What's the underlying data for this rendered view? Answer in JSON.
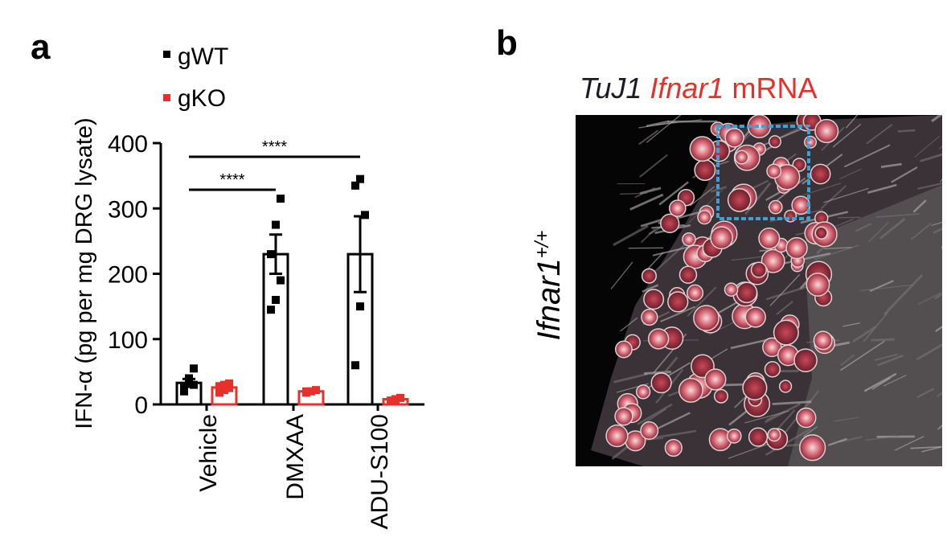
{
  "panels": {
    "a": {
      "label": "a"
    },
    "b": {
      "label": "b",
      "title_part1": "TuJ1",
      "title_part2": "Ifnar1",
      "title_part3": "mRNA",
      "side_label": "Ifnar1",
      "side_label_sup": "+/+"
    }
  },
  "colors": {
    "gWT": "#000000",
    "gKO": "#e8302a",
    "tuj1_text": "#1a1a2a",
    "mrna_text": "#e8302a",
    "roi_box": "#3fa0d8",
    "micrograph_bg": "#050505"
  },
  "chart_data": {
    "type": "bar",
    "ylabel": "IFN-α (pg per mg DRG lysate)",
    "ylim": [
      0,
      400
    ],
    "yticks": [
      "0",
      "100",
      "200",
      "300",
      "400"
    ],
    "categories": [
      "Vehicle",
      "DMXAA",
      "ADU-S100"
    ],
    "series": [
      {
        "name": "gWT",
        "values": [
          33,
          230,
          230
        ],
        "sem": [
          6,
          30,
          58
        ],
        "points": [
          [
            28,
            35,
            55,
            20,
            40,
            30
          ],
          [
            145,
            160,
            190,
            230,
            275,
            315
          ],
          [
            60,
            150,
            290,
            335,
            345
          ]
        ]
      },
      {
        "name": "gKO",
        "values": [
          26,
          20,
          8
        ],
        "sem": [
          3,
          2,
          2
        ],
        "points": [
          [
            18,
            22,
            25,
            28,
            30,
            32
          ],
          [
            18,
            20,
            22,
            20
          ],
          [
            6,
            8,
            10
          ]
        ]
      }
    ],
    "significance": [
      {
        "from": "Vehicle",
        "to": "DMXAA",
        "label": "****"
      },
      {
        "from": "Vehicle",
        "to": "ADU-S100",
        "label": "****"
      }
    ],
    "legend": "top-left"
  }
}
